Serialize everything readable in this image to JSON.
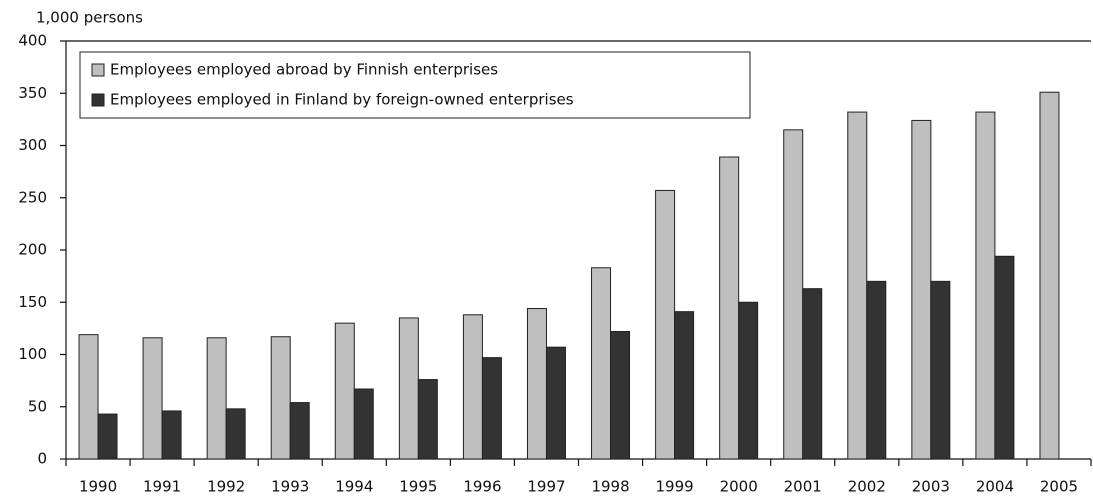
{
  "chart_data": {
    "type": "bar",
    "y_label": "1,000 persons",
    "categories": [
      "1990",
      "1991",
      "1992",
      "1993",
      "1994",
      "1995",
      "1996",
      "1997",
      "1998",
      "1999",
      "2000",
      "2001",
      "2002",
      "2003",
      "2004",
      "2005"
    ],
    "series": [
      {
        "name": "Employees employed abroad by Finnish enterprises",
        "color": "#bfbfbf",
        "values": [
          119,
          116,
          116,
          117,
          130,
          135,
          138,
          144,
          183,
          257,
          289,
          315,
          332,
          324,
          332,
          351
        ]
      },
      {
        "name": "Employees employed in Finland by foreign-owned enterprises",
        "color": "#333333",
        "values": [
          43,
          46,
          48,
          54,
          67,
          76,
          97,
          107,
          122,
          141,
          150,
          163,
          170,
          170,
          194,
          null
        ]
      }
    ],
    "ylim": [
      0,
      400
    ],
    "yticks": [
      0,
      50,
      100,
      150,
      200,
      250,
      300,
      350,
      400
    ],
    "grid": false,
    "legend": "top-left"
  }
}
